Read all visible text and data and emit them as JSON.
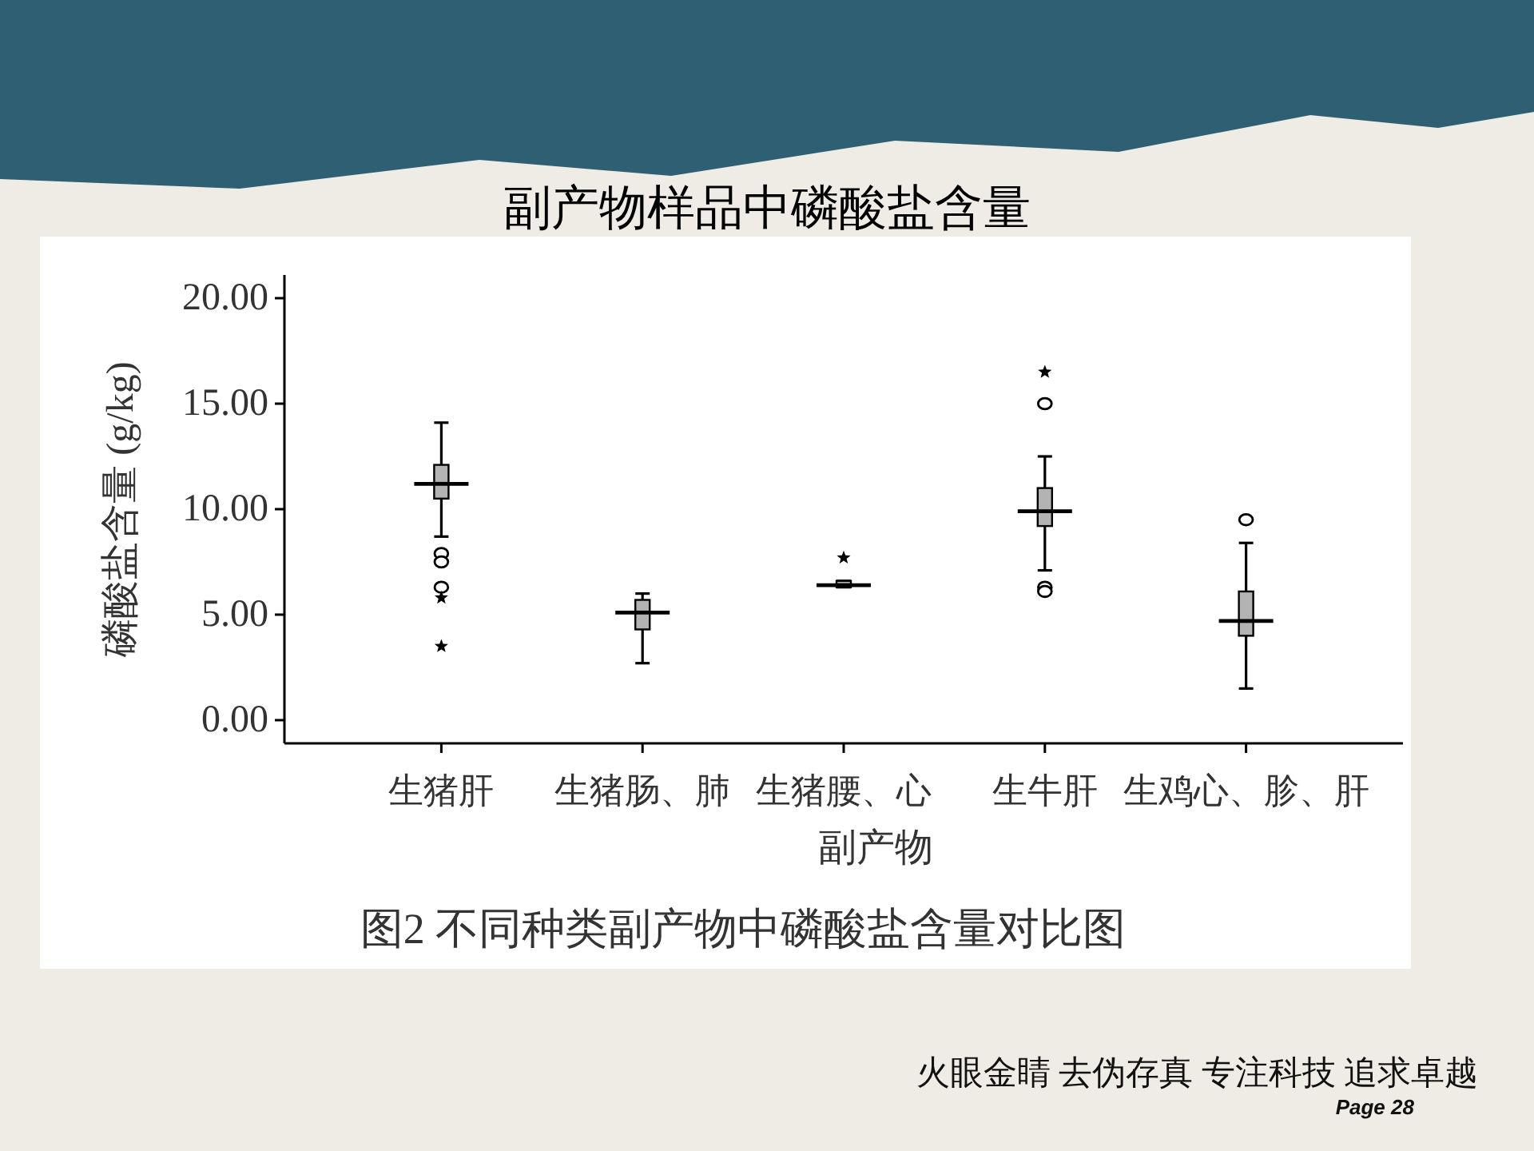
{
  "chart_data": {
    "type": "box",
    "title": "副产物样品中磷酸盐含量",
    "xlabel": "副产物",
    "ylabel": "磷酸盐含量 (g/kg)",
    "categories": [
      "生猪肝",
      "生猪肠、肺",
      "生猪腰、心",
      "生牛肝",
      "生鸡心、胗、肝"
    ],
    "ylim": [
      -1.1,
      21.1
    ],
    "yticks": [
      {
        "value": 0,
        "label": "0.00"
      },
      {
        "value": 5,
        "label": "5.00"
      },
      {
        "value": 10,
        "label": "10.00"
      },
      {
        "value": 15,
        "label": "15.00"
      },
      {
        "value": 20,
        "label": "20.00"
      }
    ],
    "series": [
      {
        "type": "box",
        "color": "#b3b3b3",
        "marker": "circle",
        "boxes": [
          {
            "low": 8.7,
            "q1": 10.5,
            "median": 11.2,
            "q3": 12.1,
            "high": 14.1,
            "outliers": [
              7.9,
              7.5,
              6.3
            ]
          },
          {
            "low": 2.7,
            "q1": 4.3,
            "median": 5.1,
            "q3": 5.7,
            "high": 6.0
          },
          {
            "low": 6.3,
            "q1": 6.3,
            "median": 6.4,
            "q3": 6.6,
            "high": 6.6
          },
          {
            "low": 7.1,
            "q1": 9.2,
            "median": 9.9,
            "q3": 11.0,
            "high": 12.5,
            "outliers": [
              15.0,
              6.3,
              6.1
            ]
          },
          {
            "low": 1.5,
            "q1": 4.0,
            "median": 4.7,
            "q3": 6.1,
            "high": 8.4,
            "outliers": [
              9.5
            ]
          }
        ]
      },
      {
        "type": "scatter",
        "color": "#000000",
        "marker": "star",
        "x": [
          "生猪肝",
          "生猪肝",
          "生猪腰、心",
          "生牛肝"
        ],
        "values": [
          5.8,
          3.5,
          7.7,
          16.5
        ]
      }
    ],
    "annotations": [
      "图2 不同种类副产物中磷酸盐含量对比图",
      "火眼金睛 去伪存真 专注科技 追求卓越",
      "Page 28"
    ]
  }
}
